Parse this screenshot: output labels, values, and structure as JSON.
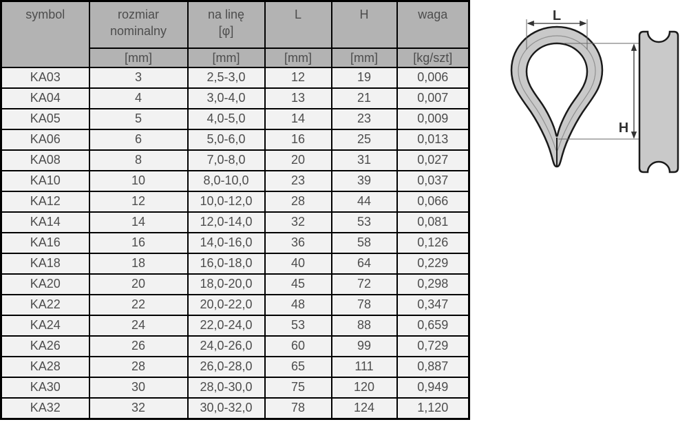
{
  "table": {
    "header": {
      "symbol": {
        "line1": "symbol"
      },
      "rozmiar": {
        "line1": "rozmiar",
        "line2": "nominalny",
        "unit": "[mm]"
      },
      "lina": {
        "line1": "na linę",
        "line2": "[φ]",
        "unit": "[mm]"
      },
      "L": {
        "line1": "L",
        "unit": "[mm]"
      },
      "H": {
        "line1": "H",
        "unit": "[mm]"
      },
      "waga": {
        "line1": "waga",
        "unit": "[kg/szt]"
      }
    },
    "rows": [
      [
        "KA03",
        "3",
        "2,5-3,0",
        "12",
        "19",
        "0,006"
      ],
      [
        "KA04",
        "4",
        "3,0-4,0",
        "13",
        "21",
        "0,007"
      ],
      [
        "KA05",
        "5",
        "4,0-5,0",
        "14",
        "23",
        "0,009"
      ],
      [
        "KA06",
        "6",
        "5,0-6,0",
        "16",
        "25",
        "0,013"
      ],
      [
        "KA08",
        "8",
        "7,0-8,0",
        "20",
        "31",
        "0,027"
      ],
      [
        "KA10",
        "10",
        "8,0-10,0",
        "23",
        "39",
        "0,037"
      ],
      [
        "KA12",
        "12",
        "10,0-12,0",
        "28",
        "44",
        "0,066"
      ],
      [
        "KA14",
        "14",
        "12,0-14,0",
        "32",
        "53",
        "0,081"
      ],
      [
        "KA16",
        "16",
        "14,0-16,0",
        "36",
        "58",
        "0,126"
      ],
      [
        "KA18",
        "18",
        "16,0-18,0",
        "40",
        "64",
        "0,229"
      ],
      [
        "KA20",
        "20",
        "18,0-20,0",
        "45",
        "72",
        "0,298"
      ],
      [
        "KA22",
        "22",
        "20,0-22,0",
        "48",
        "78",
        "0,347"
      ],
      [
        "KA24",
        "24",
        "22,0-24,0",
        "53",
        "88",
        "0,659"
      ],
      [
        "KA26",
        "26",
        "24,0-26,0",
        "60",
        "99",
        "0,729"
      ],
      [
        "KA28",
        "28",
        "26,0-28,0",
        "65",
        "111",
        "0,887"
      ],
      [
        "KA30",
        "30",
        "28,0-30,0",
        "75",
        "120",
        "0,949"
      ],
      [
        "KA32",
        "32",
        "30,0-32,0",
        "78",
        "124",
        "1,120"
      ]
    ]
  },
  "diagram": {
    "dim_width_label": "L",
    "dim_height_label": "H"
  },
  "colors": {
    "header_bg": "#b3b3b3",
    "row_bg": "#f2f2f2",
    "border": "#000000",
    "text": "#4d4d4d",
    "thimble_fill": "#c9c9c9",
    "thimble_stroke": "#1a1a1a"
  }
}
